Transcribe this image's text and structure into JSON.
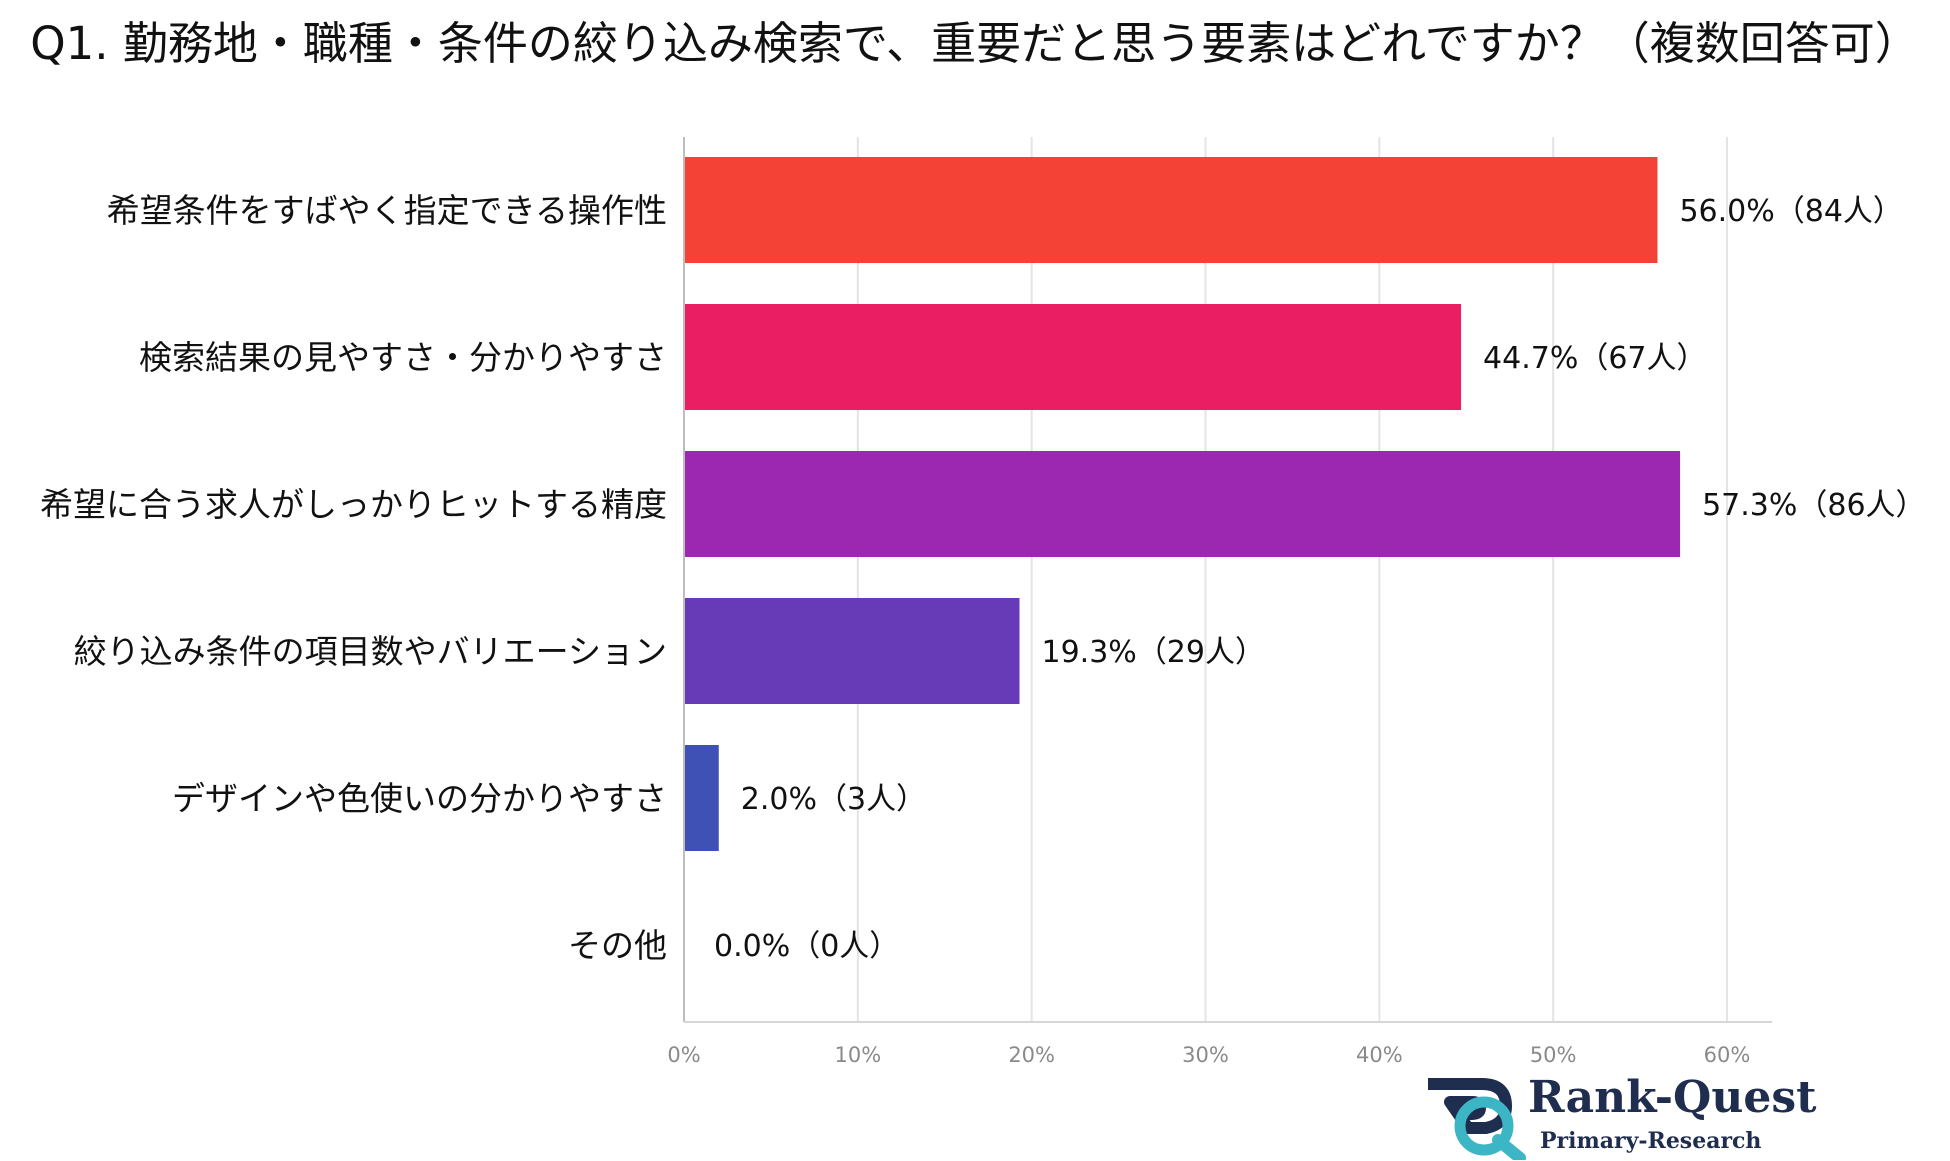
{
  "chart_data": {
    "type": "bar",
    "orientation": "horizontal",
    "title": "Q1. 勤務地・職種・条件の絞り込み検索で、重要だと思う要素はどれですか？（複数回答可）",
    "categories": [
      "希望条件をすばやく指定できる操作性",
      "検索結果の見やすさ・分かりやすさ",
      "希望に合う求人がしっかりヒットする精度",
      "絞り込み条件の項目数やバリエーション",
      "デザインや色使いの分かりやすさ",
      "その他"
    ],
    "values": [
      56.0,
      44.7,
      57.3,
      19.3,
      2.0,
      0.0
    ],
    "data_labels": [
      "56.0%（84人）",
      "44.7%（67人）",
      "57.3%（86人）",
      "19.3%（29人）",
      "2.0%（3人）",
      "0.0%（0人）"
    ],
    "colors": [
      "#f44336",
      "#e91e63",
      "#9c27b0",
      "#673ab7",
      "#3f51b5",
      "#2196f3"
    ],
    "xlim": [
      0,
      60
    ],
    "xticks": [
      0,
      10,
      20,
      30,
      40,
      50,
      60
    ],
    "xtick_labels": [
      "0%",
      "10%",
      "20%",
      "30%",
      "40%",
      "50%",
      "60%"
    ],
    "xlabel": "",
    "ylabel": "",
    "grid": true
  },
  "logo": {
    "title": "Rank-Quest",
    "subtitle": "Primary-Research",
    "colors": {
      "navy": "#1f2d4f",
      "teal": "#3cb6c4"
    }
  }
}
